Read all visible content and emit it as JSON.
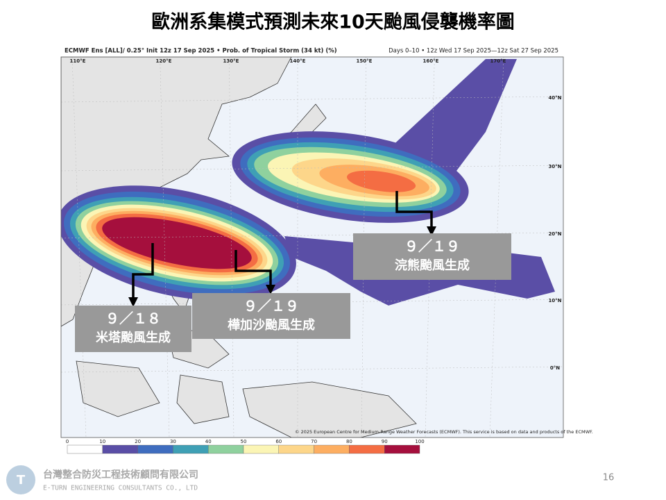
{
  "title": "歐洲系集模式預測未來10天颱風侵襲機率圖",
  "map": {
    "header_left": "ECMWF Ens [ALL]/ 0.25° Init 12z 17 Sep 2025 • Prob. of Tropical Storm (34 kt) (%)",
    "header_right": "Days 0–10 • 12z Wed 17 Sep 2025—12z Sat 27 Sep 2025",
    "longitudes": [
      "110°E",
      "120°E",
      "130°E",
      "140°E",
      "150°E",
      "160°E",
      "170°E"
    ],
    "latitudes": [
      "40°N",
      "30°N",
      "20°N",
      "10°N",
      "0°N"
    ],
    "copyright": "© 2025 European Centre for Medium-Range Weather Forecasts (ECMWF). This service is based on data and products of the ECMWF.",
    "colorbar_ticks": [
      "0",
      "10",
      "20",
      "30",
      "40",
      "50",
      "60",
      "70",
      "80",
      "90",
      "100"
    ]
  },
  "annotations": [
    {
      "date": "９／１８",
      "text": "米塔颱風生成"
    },
    {
      "date": "９／１９",
      "text": "樺加沙颱風生成"
    },
    {
      "date": "９／１９",
      "text": "浣熊颱風生成"
    }
  ],
  "footer": {
    "company": "台灣整合防災工程技術顧問有限公司",
    "company_en": "E-TURN ENGINEERING CONSULTANTS CO., LTD",
    "page": "16"
  }
}
